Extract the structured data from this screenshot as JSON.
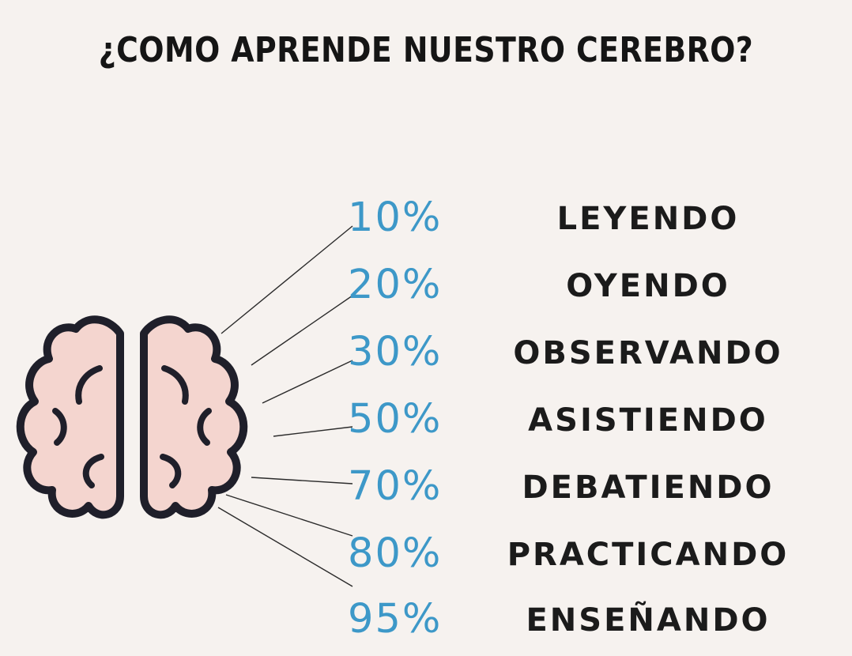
{
  "title": "¿COMO APRENDE NUESTRO CEREBRO?",
  "colors": {
    "background": "#f6f2ef",
    "percent": "#3d98c8",
    "text": "#1b1b1b",
    "brain_fill": "#f4d5cf",
    "brain_stroke": "#1f1f2a"
  },
  "icons": {
    "brain": "brain-icon"
  },
  "rows": [
    {
      "percent": "10%",
      "label": "LEYENDO"
    },
    {
      "percent": "20%",
      "label": "OYENDO"
    },
    {
      "percent": "30%",
      "label": "OBSERVANDO"
    },
    {
      "percent": "50%",
      "label": "ASISTIENDO"
    },
    {
      "percent": "70%",
      "label": "DEBATIENDO"
    },
    {
      "percent": "80%",
      "label": "PRACTICANDO"
    },
    {
      "percent": "95%",
      "label": "ENSEÑANDO"
    }
  ]
}
